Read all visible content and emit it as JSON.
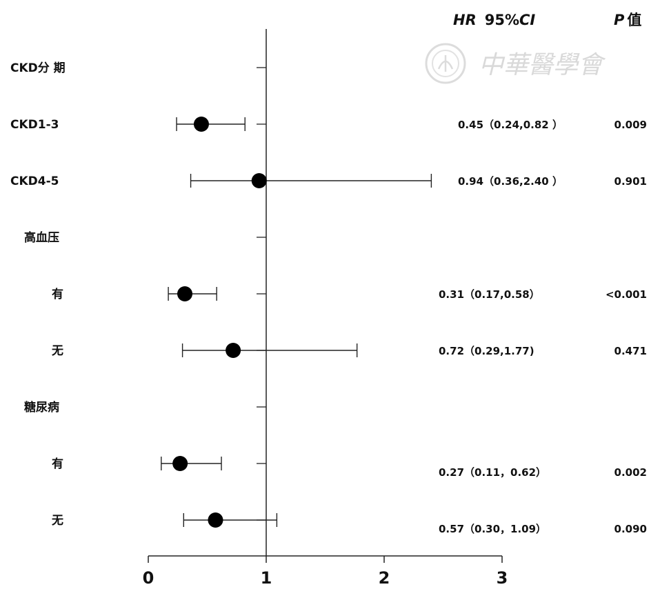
{
  "chart_data": {
    "type": "forest",
    "header": {
      "hr": "HR",
      "ci": "95%CI",
      "p_letter": "P",
      "p_suffix": "值"
    },
    "xaxis": {
      "ticks": [
        0,
        1,
        2,
        3
      ],
      "range": [
        0,
        3
      ],
      "reference": 1
    },
    "rows": [
      {
        "label": "CKD分 期",
        "group": true
      },
      {
        "label": "CKD1-3",
        "hr": 0.45,
        "lo": 0.24,
        "hi": 0.82,
        "text": "0.45（0.24,0.82 ）",
        "p": "0.009"
      },
      {
        "label": "CKD4-5",
        "hr": 0.94,
        "lo": 0.36,
        "hi": 2.4,
        "text": "0.94（0.36,2.40 ）",
        "p": "0.901"
      },
      {
        "label": "高血压",
        "group": true
      },
      {
        "label": "有",
        "hr": 0.31,
        "lo": 0.17,
        "hi": 0.58,
        "text": "0.31（0.17,0.58）",
        "p": "<0.001"
      },
      {
        "label": "无",
        "hr": 0.72,
        "lo": 0.29,
        "hi": 1.77,
        "text": "0.72（0.29,1.77)",
        "p": "0.471"
      },
      {
        "label": "糖尿病",
        "group": true
      },
      {
        "label": "有",
        "hr": 0.27,
        "lo": 0.11,
        "hi": 0.62,
        "text": "0.27（0.11，0.62）",
        "p": "0.002"
      },
      {
        "label": "无",
        "hr": 0.57,
        "lo": 0.3,
        "hi": 1.09,
        "text": "0.57（0.30，1.09）",
        "p": "0.090"
      }
    ],
    "watermark": "中華醫學會"
  }
}
